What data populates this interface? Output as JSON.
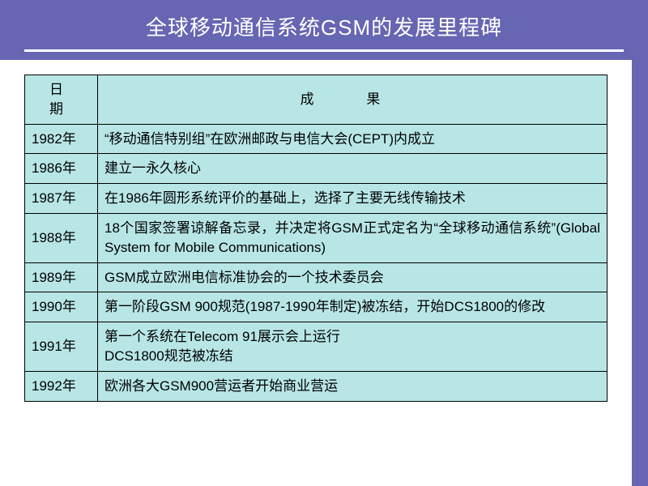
{
  "slide": {
    "title": "全球移动通信系统GSM的发展里程碑",
    "background_color": "#ffffff",
    "header_bg_color": "#6666b3",
    "title_color": "#ffffff",
    "title_fontsize": 26
  },
  "table": {
    "type": "table",
    "background_color": "#b8e6e6",
    "border_color": "#000000",
    "cell_fontsize": 17,
    "columns": [
      {
        "label": "日   期",
        "width": 90,
        "align": "center"
      },
      {
        "label": "成        果",
        "align": "center"
      }
    ],
    "rows": [
      {
        "date": "1982年",
        "result": "“移动通信特别组”在欧洲邮政与电信大会(CEPT)内成立"
      },
      {
        "date": "1986年",
        "result": "建立一永久核心"
      },
      {
        "date": "1987年",
        "result": "在1986年圆形系统评价的基础上，选择了主要无线传输技术"
      },
      {
        "date": "1988年",
        "result": "18个国家签署谅解备忘录，并决定将GSM正式定名为“全球移动通信系统”(Global    System  for Mobile Communications)"
      },
      {
        "date": "1989年",
        "result": "GSM成立欧洲电信标准协会的一个技术委员会"
      },
      {
        "date": "1990年",
        "result": "第一阶段GSM  900规范(1987-1990年制定)被冻结，开始DCS1800的修改"
      },
      {
        "date": "1991年",
        "result": "第一个系统在Telecom 91展示会上运行\nDCS1800规范被冻结"
      },
      {
        "date": "1992年",
        "result": "欧洲各大GSM900营运者开始商业营运"
      }
    ]
  }
}
